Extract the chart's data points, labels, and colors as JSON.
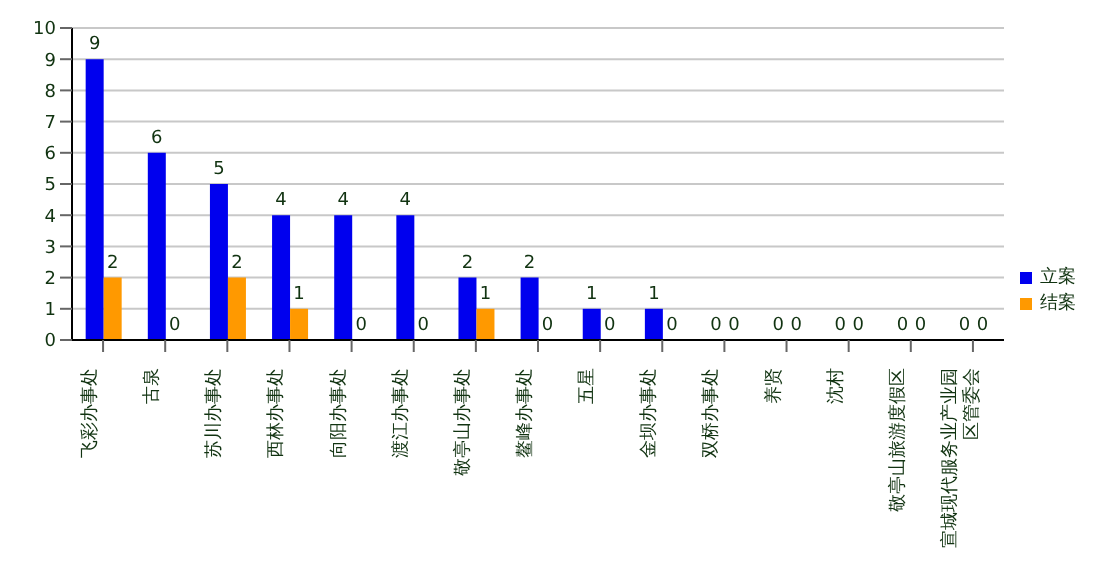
{
  "chart_data": {
    "type": "bar",
    "categories": [
      "飞彩办事处",
      "古泉",
      "苏川办事处",
      "西林办事处",
      "向阳办事处",
      "渡江办事处",
      "敬亭山办事处",
      "鳌峰办事处",
      "五星",
      "金坝办事处",
      "双桥办事处",
      "养贤",
      "沈村",
      "敬亭山旅游度假区",
      "宣城现代服务业产业园区管委会"
    ],
    "series": [
      {
        "name": "立案",
        "color": "#0000ee",
        "values": [
          9,
          6,
          5,
          4,
          4,
          4,
          2,
          2,
          1,
          1,
          0,
          0,
          0,
          0,
          0
        ]
      },
      {
        "name": "结案",
        "color": "#ff9900",
        "values": [
          2,
          0,
          2,
          1,
          0,
          0,
          1,
          0,
          0,
          0,
          0,
          0,
          0,
          0,
          0
        ]
      }
    ],
    "ylim": [
      0,
      10
    ],
    "yticks": [
      0,
      1,
      2,
      3,
      4,
      5,
      6,
      7,
      8,
      9,
      10
    ],
    "grid": "y",
    "legend": "right",
    "data_labels": true
  }
}
